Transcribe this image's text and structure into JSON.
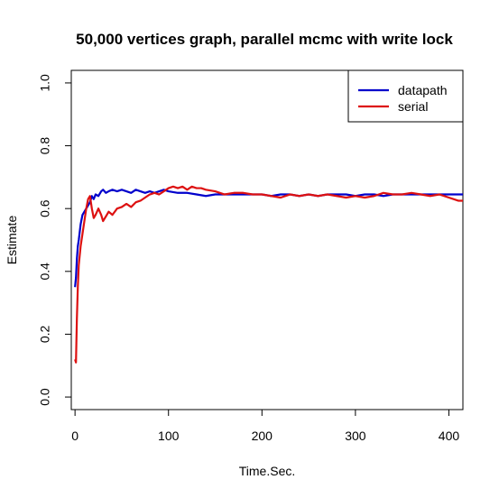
{
  "chart_data": {
    "type": "line",
    "title": "50,000 vertices graph, parallel mcmc with write lock",
    "xlabel": "Time.Sec.",
    "ylabel": "Estimate",
    "xlim": [
      -4,
      415
    ],
    "ylim": [
      -0.04,
      1.04
    ],
    "xticks": [
      0,
      100,
      200,
      300,
      400
    ],
    "yticks": [
      0.0,
      0.2,
      0.4,
      0.6,
      0.8,
      1.0
    ],
    "xtick_labels": [
      "0",
      "100",
      "200",
      "300",
      "400"
    ],
    "ytick_labels": [
      "0.0",
      "0.2",
      "0.4",
      "0.6",
      "0.8",
      "1.0"
    ],
    "grid": false,
    "legend_position": "top-right",
    "series": [
      {
        "name": "datapath",
        "color": "#0000cc",
        "x": [
          0,
          1,
          2,
          3,
          4,
          6,
          8,
          10,
          12,
          14,
          16,
          18,
          20,
          22,
          25,
          28,
          30,
          33,
          36,
          40,
          45,
          50,
          55,
          60,
          65,
          70,
          75,
          80,
          85,
          90,
          95,
          100,
          110,
          120,
          130,
          140,
          150,
          160,
          170,
          180,
          190,
          200,
          210,
          220,
          230,
          240,
          250,
          260,
          270,
          280,
          290,
          300,
          310,
          320,
          330,
          340,
          350,
          360,
          370,
          380,
          390,
          400,
          410,
          415
        ],
        "y": [
          0.35,
          0.38,
          0.44,
          0.48,
          0.5,
          0.55,
          0.58,
          0.59,
          0.6,
          0.61,
          0.62,
          0.64,
          0.63,
          0.645,
          0.64,
          0.655,
          0.66,
          0.65,
          0.655,
          0.66,
          0.655,
          0.66,
          0.655,
          0.65,
          0.66,
          0.655,
          0.65,
          0.655,
          0.65,
          0.655,
          0.66,
          0.655,
          0.65,
          0.65,
          0.645,
          0.64,
          0.645,
          0.645,
          0.645,
          0.645,
          0.645,
          0.645,
          0.64,
          0.645,
          0.645,
          0.64,
          0.645,
          0.64,
          0.645,
          0.645,
          0.645,
          0.64,
          0.645,
          0.645,
          0.64,
          0.645,
          0.645,
          0.645,
          0.645,
          0.645,
          0.645,
          0.645,
          0.645,
          0.645
        ]
      },
      {
        "name": "serial",
        "color": "#dd1111",
        "x": [
          0,
          1,
          2,
          3,
          4,
          6,
          8,
          10,
          12,
          14,
          16,
          18,
          20,
          22,
          25,
          28,
          30,
          33,
          36,
          40,
          45,
          50,
          55,
          60,
          65,
          70,
          75,
          80,
          85,
          90,
          95,
          100,
          105,
          110,
          115,
          120,
          125,
          130,
          135,
          140,
          150,
          160,
          170,
          180,
          190,
          200,
          210,
          220,
          230,
          240,
          250,
          260,
          270,
          280,
          290,
          300,
          310,
          320,
          330,
          340,
          350,
          360,
          370,
          380,
          390,
          400,
          410,
          415
        ],
        "y": [
          0.12,
          0.11,
          0.25,
          0.35,
          0.42,
          0.48,
          0.52,
          0.56,
          0.6,
          0.63,
          0.64,
          0.6,
          0.57,
          0.58,
          0.6,
          0.58,
          0.56,
          0.575,
          0.59,
          0.58,
          0.6,
          0.605,
          0.615,
          0.605,
          0.62,
          0.625,
          0.635,
          0.645,
          0.65,
          0.645,
          0.655,
          0.665,
          0.67,
          0.665,
          0.67,
          0.66,
          0.67,
          0.665,
          0.665,
          0.66,
          0.655,
          0.645,
          0.65,
          0.65,
          0.645,
          0.645,
          0.64,
          0.635,
          0.645,
          0.64,
          0.645,
          0.64,
          0.645,
          0.64,
          0.635,
          0.64,
          0.635,
          0.64,
          0.65,
          0.645,
          0.645,
          0.65,
          0.645,
          0.64,
          0.645,
          0.635,
          0.625,
          0.625
        ]
      }
    ]
  }
}
